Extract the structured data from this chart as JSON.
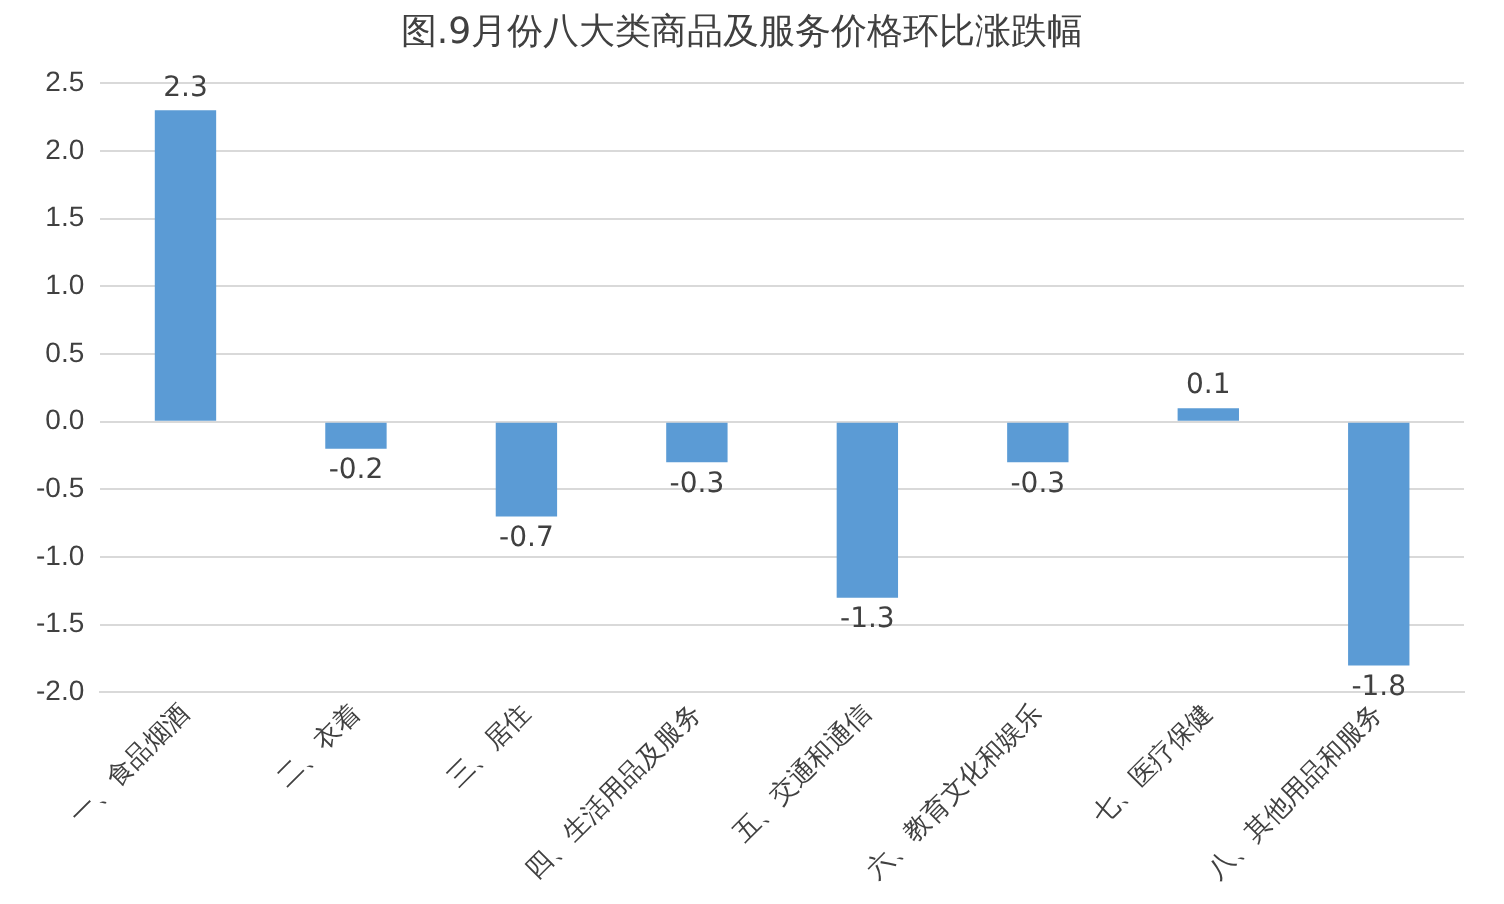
{
  "chart_data": {
    "type": "bar",
    "title": "图.9月份八大类商品及服务价格环比涨跌幅",
    "categories": [
      "一、食品烟酒",
      "二、衣着",
      "三、居住",
      "四、生活用品及服务",
      "五、交通和通信",
      "六、教育文化和娱乐",
      "七、医疗保健",
      "八、其他用品和服务"
    ],
    "values": [
      2.3,
      -0.2,
      -0.7,
      -0.3,
      -1.3,
      -0.3,
      0.1,
      -1.8
    ],
    "color": "#5b9bd5",
    "ylim": [
      -2.0,
      2.5
    ],
    "yticks": [
      {
        "value": -2,
        "label": "-2.0"
      },
      {
        "value": -1.5,
        "label": "-1.5"
      },
      {
        "value": -1,
        "label": "-1.0"
      },
      {
        "value": -0.5,
        "label": "-0.5"
      },
      {
        "value": 0,
        "label": "0.0"
      },
      {
        "value": 0.5,
        "label": "0.5"
      },
      {
        "value": 1,
        "label": "1.0"
      },
      {
        "value": 1.5,
        "label": "1.5"
      },
      {
        "value": 2,
        "label": "2.0"
      },
      {
        "value": 2.5,
        "label": "2.5"
      }
    ],
    "grid": "y",
    "data_labels": true,
    "legend": false
  }
}
